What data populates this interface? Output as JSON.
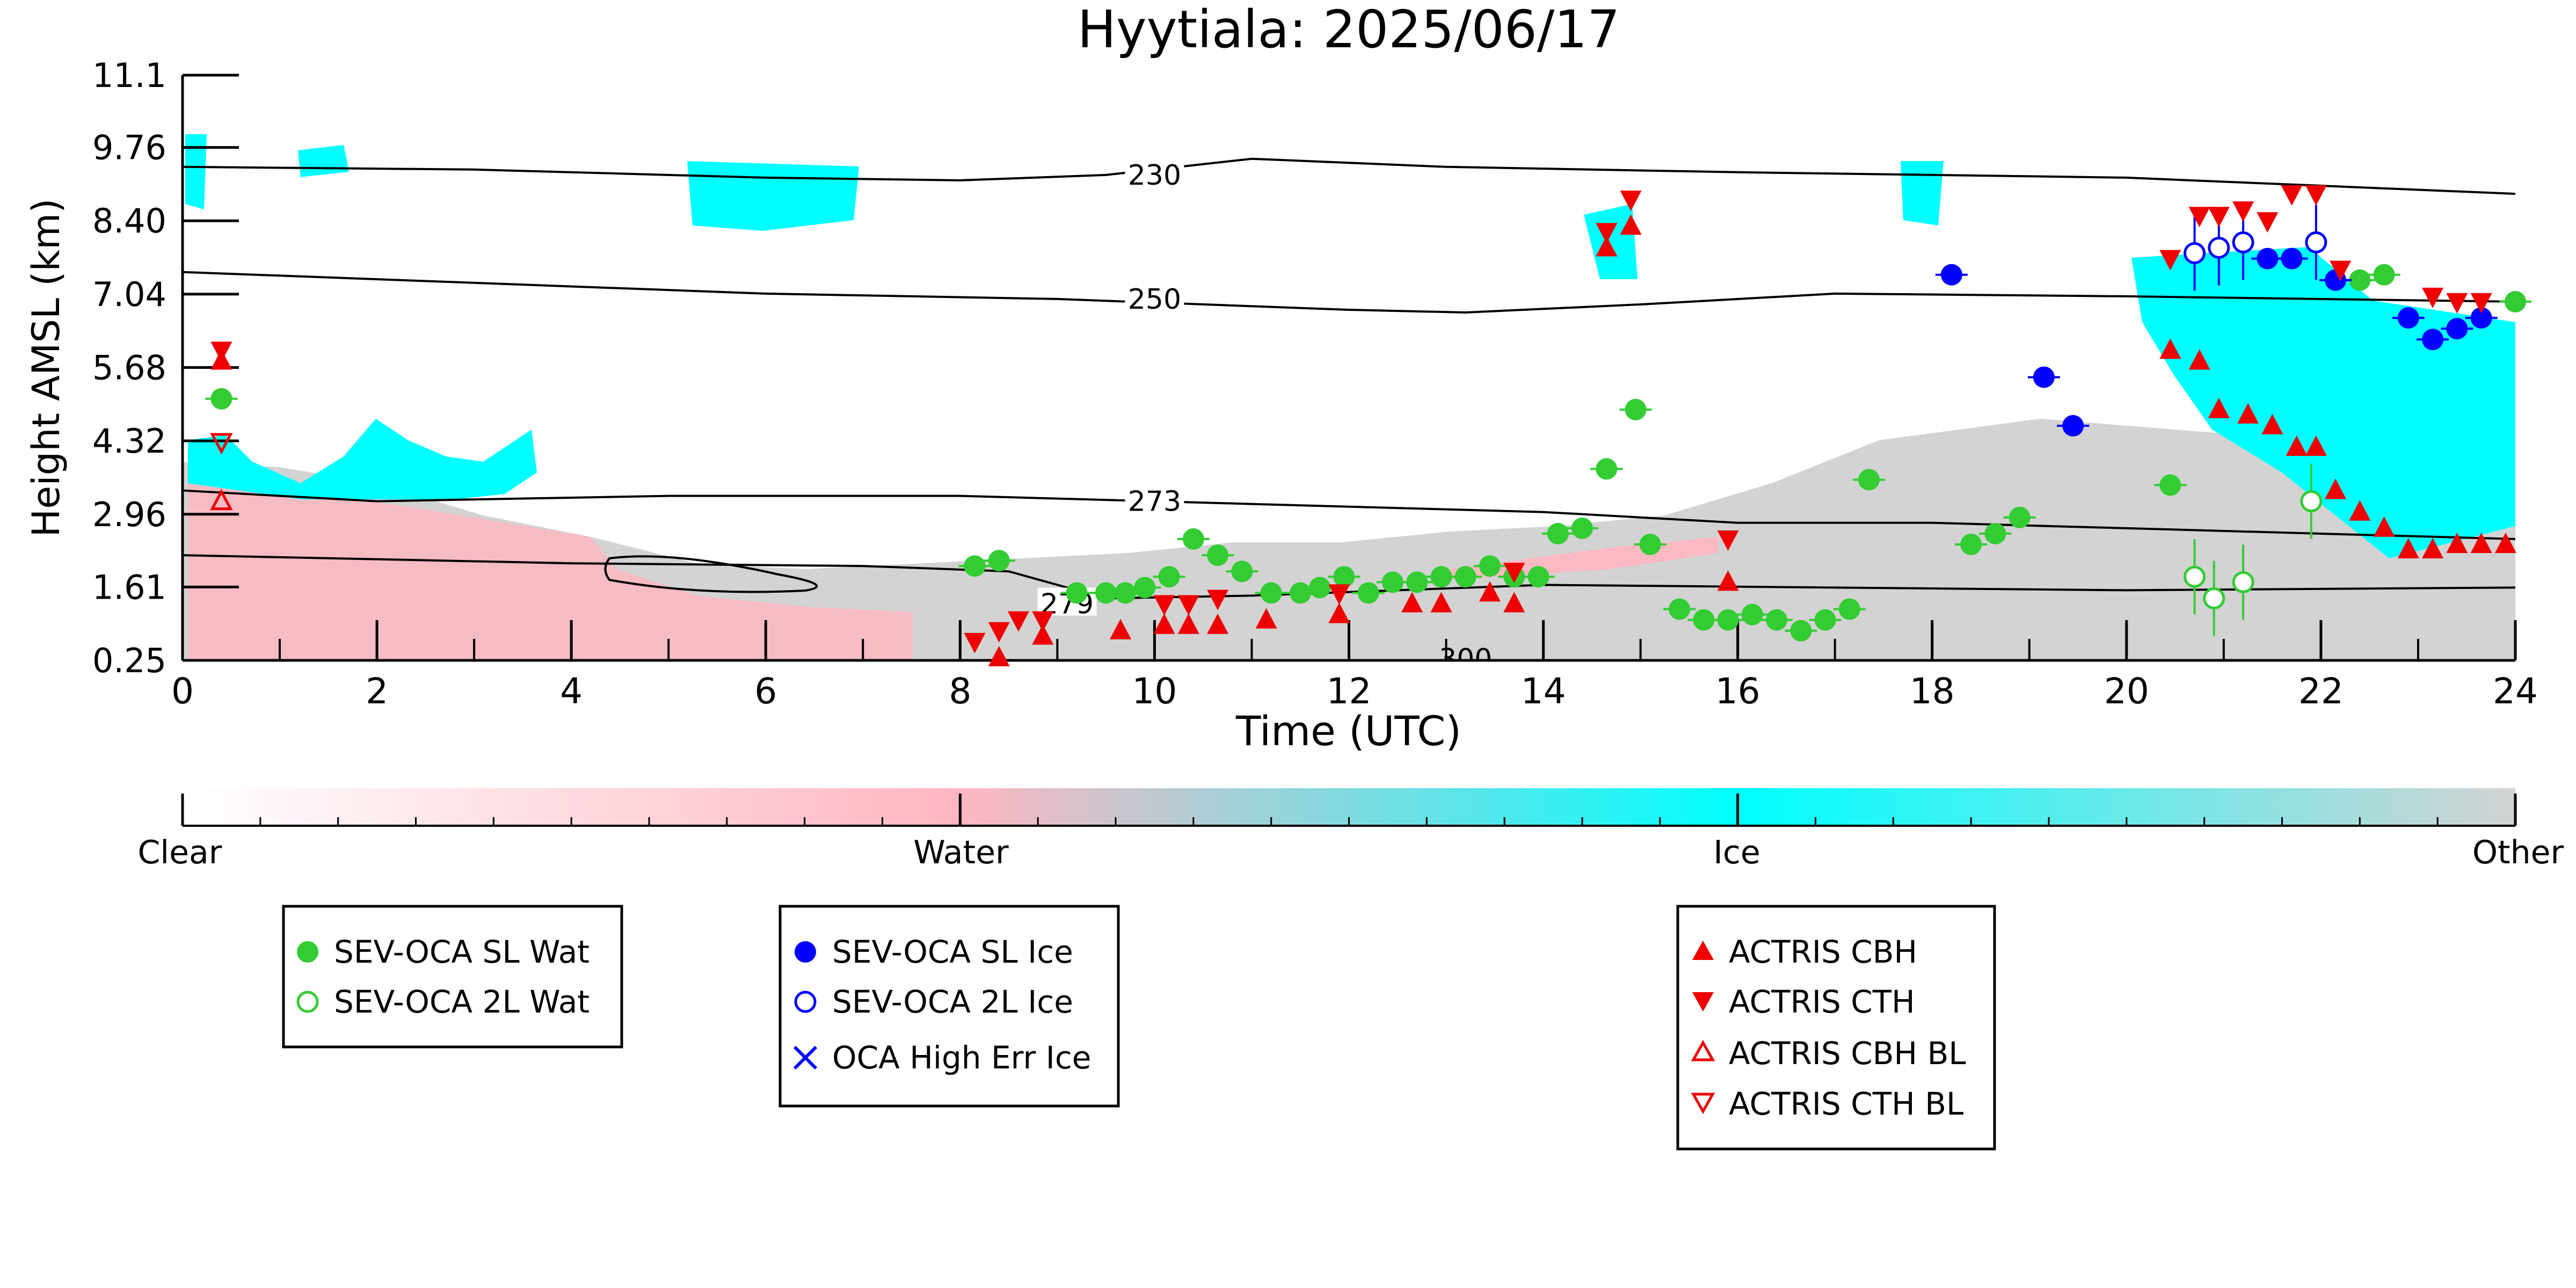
{
  "chart_data": {
    "type": "scatter",
    "title": "Hyytiala: 2025/06/17",
    "xlabel": "Time (UTC)",
    "ylabel": "Height AMSL (km)",
    "xlim": [
      0,
      24
    ],
    "ylim": [
      0.25,
      11.1
    ],
    "x_ticks": [
      "0",
      "2",
      "4",
      "6",
      "8",
      "10",
      "12",
      "14",
      "16",
      "18",
      "20",
      "22",
      "24"
    ],
    "y_ticks": [
      "0.25",
      "1.61",
      "2.96",
      "4.32",
      "5.68",
      "7.04",
      "8.40",
      "9.76",
      "11.1"
    ],
    "background": "cloud classification (Clear / Water / Ice / Other)",
    "colorbar": {
      "labels": [
        "Clear",
        "Water",
        "Ice",
        "Other"
      ],
      "colors": [
        "#ffffff",
        "#ffb6c1",
        "#00ffff",
        "#d3d3d3"
      ]
    },
    "contours": [
      {
        "label": "230",
        "points": [
          [
            0,
            9.4
          ],
          [
            3,
            9.35
          ],
          [
            6,
            9.2
          ],
          [
            8,
            9.15
          ],
          [
            9.5,
            9.25
          ],
          [
            11,
            9.55
          ],
          [
            13,
            9.4
          ],
          [
            16,
            9.3
          ],
          [
            20,
            9.2
          ],
          [
            24,
            8.9
          ]
        ]
      },
      {
        "label": "250",
        "points": [
          [
            0,
            7.45
          ],
          [
            3,
            7.25
          ],
          [
            6,
            7.05
          ],
          [
            9,
            6.95
          ],
          [
            12,
            6.75
          ],
          [
            13.2,
            6.7
          ],
          [
            15,
            6.85
          ],
          [
            17,
            7.05
          ],
          [
            20,
            7.0
          ],
          [
            24,
            6.9
          ]
        ]
      },
      {
        "label": "273",
        "points": [
          [
            0,
            3.4
          ],
          [
            2,
            3.2
          ],
          [
            5,
            3.3
          ],
          [
            8,
            3.3
          ],
          [
            11,
            3.15
          ],
          [
            14,
            3.0
          ],
          [
            16,
            2.8
          ],
          [
            18,
            2.8
          ],
          [
            20,
            2.7
          ],
          [
            24,
            2.5
          ]
        ]
      },
      {
        "label": "279",
        "points": [
          [
            0,
            2.2
          ],
          [
            4,
            2.05
          ],
          [
            7,
            2.0
          ],
          [
            8.5,
            1.9
          ],
          [
            9.5,
            1.4
          ],
          [
            11,
            1.45
          ],
          [
            14,
            1.65
          ],
          [
            17,
            1.6
          ],
          [
            20,
            1.55
          ],
          [
            24,
            1.6
          ]
        ]
      },
      {
        "label": "300",
        "points": []
      }
    ],
    "legend_entries": [
      "SEV-OCA SL Wat",
      "SEV-OCA 2L Wat",
      "SEV-OCA SL Ice",
      "SEV-OCA 2L Ice",
      "OCA High Err Ice",
      "ACTRIS CBH",
      "ACTRIS CTH",
      "ACTRIS CBH BL",
      "ACTRIS CTH BL"
    ],
    "series": [
      {
        "name": "SEV-OCA SL Wat",
        "color": "#33cc33",
        "marker": "filled-circle",
        "points": [
          [
            0.4,
            5.1
          ],
          [
            8.15,
            2.0
          ],
          [
            8.4,
            2.1
          ],
          [
            9.2,
            1.5
          ],
          [
            9.5,
            1.5
          ],
          [
            9.7,
            1.5
          ],
          [
            9.9,
            1.6
          ],
          [
            10.15,
            1.8
          ],
          [
            10.4,
            2.5
          ],
          [
            10.65,
            2.2
          ],
          [
            10.9,
            1.9
          ],
          [
            11.2,
            1.5
          ],
          [
            11.5,
            1.5
          ],
          [
            11.7,
            1.6
          ],
          [
            11.95,
            1.8
          ],
          [
            12.2,
            1.5
          ],
          [
            12.45,
            1.7
          ],
          [
            12.7,
            1.7
          ],
          [
            12.95,
            1.8
          ],
          [
            13.2,
            1.8
          ],
          [
            13.45,
            2.0
          ],
          [
            13.7,
            1.8
          ],
          [
            13.95,
            1.8
          ],
          [
            14.15,
            2.6
          ],
          [
            14.4,
            2.7
          ],
          [
            14.65,
            3.8
          ],
          [
            14.95,
            4.9
          ],
          [
            15.1,
            2.4
          ],
          [
            15.4,
            1.2
          ],
          [
            15.65,
            1.0
          ],
          [
            15.9,
            1.0
          ],
          [
            16.15,
            1.1
          ],
          [
            16.4,
            1.0
          ],
          [
            16.65,
            0.8
          ],
          [
            16.9,
            1.0
          ],
          [
            17.15,
            1.2
          ],
          [
            17.35,
            3.6
          ],
          [
            18.4,
            2.4
          ],
          [
            18.65,
            2.6
          ],
          [
            18.9,
            2.9
          ],
          [
            20.45,
            3.5
          ],
          [
            22.4,
            7.3
          ],
          [
            22.65,
            7.4
          ],
          [
            24.0,
            6.9
          ]
        ]
      },
      {
        "name": "SEV-OCA 2L Wat",
        "color": "#33cc33",
        "marker": "open-circle",
        "points": [
          [
            20.7,
            1.8
          ],
          [
            20.9,
            1.4
          ],
          [
            21.2,
            1.7
          ],
          [
            21.9,
            3.2
          ]
        ]
      },
      {
        "name": "SEV-OCA SL Ice",
        "color": "#0000ff",
        "marker": "filled-circle",
        "points": [
          [
            18.2,
            7.4
          ],
          [
            19.15,
            5.5
          ],
          [
            19.45,
            4.6
          ],
          [
            21.45,
            7.7
          ],
          [
            21.7,
            7.7
          ],
          [
            22.15,
            7.3
          ],
          [
            22.9,
            6.6
          ],
          [
            23.15,
            6.2
          ],
          [
            23.4,
            6.4
          ],
          [
            23.65,
            6.6
          ]
        ]
      },
      {
        "name": "SEV-OCA 2L Ice",
        "color": "#0000ff",
        "marker": "open-circle",
        "points": [
          [
            20.7,
            7.8
          ],
          [
            20.95,
            7.9
          ],
          [
            21.2,
            8.0
          ],
          [
            21.95,
            8.0
          ]
        ]
      },
      {
        "name": "ACTRIS CBH",
        "color": "#ee0000",
        "marker": "filled-triangle-up",
        "points": [
          [
            0.4,
            5.8
          ],
          [
            8.4,
            0.3
          ],
          [
            8.85,
            0.7
          ],
          [
            9.65,
            0.8
          ],
          [
            10.1,
            0.9
          ],
          [
            10.35,
            0.9
          ],
          [
            10.65,
            0.9
          ],
          [
            11.15,
            1.0
          ],
          [
            11.9,
            1.1
          ],
          [
            12.65,
            1.3
          ],
          [
            12.95,
            1.3
          ],
          [
            13.45,
            1.5
          ],
          [
            13.7,
            1.3
          ],
          [
            14.65,
            7.9
          ],
          [
            14.9,
            8.3
          ],
          [
            15.9,
            1.7
          ],
          [
            20.45,
            6.0
          ],
          [
            20.75,
            5.8
          ],
          [
            20.95,
            4.9
          ],
          [
            21.25,
            4.8
          ],
          [
            21.5,
            4.6
          ],
          [
            21.75,
            4.2
          ],
          [
            21.95,
            4.2
          ],
          [
            22.15,
            3.4
          ],
          [
            22.4,
            3.0
          ],
          [
            22.65,
            2.7
          ],
          [
            22.9,
            2.3
          ],
          [
            23.15,
            2.3
          ],
          [
            23.4,
            2.4
          ],
          [
            23.65,
            2.4
          ],
          [
            23.9,
            2.4
          ]
        ]
      },
      {
        "name": "ACTRIS CTH",
        "color": "#ee0000",
        "marker": "filled-triangle-down",
        "points": [
          [
            0.4,
            6.0
          ],
          [
            8.15,
            0.6
          ],
          [
            8.4,
            0.8
          ],
          [
            8.6,
            1.0
          ],
          [
            8.85,
            1.0
          ],
          [
            10.1,
            1.3
          ],
          [
            10.35,
            1.3
          ],
          [
            10.65,
            1.4
          ],
          [
            11.9,
            1.5
          ],
          [
            13.7,
            1.9
          ],
          [
            14.65,
            8.2
          ],
          [
            14.9,
            8.8
          ],
          [
            15.9,
            2.5
          ],
          [
            20.45,
            7.7
          ],
          [
            20.75,
            8.5
          ],
          [
            20.95,
            8.5
          ],
          [
            21.2,
            8.6
          ],
          [
            21.45,
            8.4
          ],
          [
            21.7,
            8.9
          ],
          [
            21.95,
            8.9
          ],
          [
            22.2,
            7.5
          ],
          [
            23.15,
            7.0
          ],
          [
            23.4,
            6.9
          ],
          [
            23.65,
            6.9
          ]
        ]
      },
      {
        "name": "ACTRIS CBH BL",
        "color": "#ee0000",
        "marker": "open-triangle-up",
        "points": [
          [
            0.4,
            3.2
          ]
        ]
      },
      {
        "name": "ACTRIS CTH BL",
        "color": "#ee0000",
        "marker": "open-triangle-down",
        "points": [
          [
            0.4,
            4.3
          ]
        ]
      }
    ]
  }
}
